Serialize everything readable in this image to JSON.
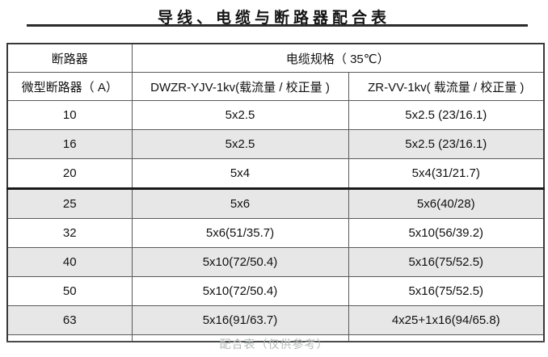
{
  "title": "导线、电缆与断路器配合表",
  "caption": "配合表（仅供参考）",
  "table": {
    "header": {
      "breaker": "断路器",
      "cable_spec": "电缆规格（ 35℃）",
      "breaker_detail": "微型断路器（ A）",
      "col_dwzr": "DWZR-YJV-1kv(载流量 / 校正量 )",
      "col_zrvv": "ZR-VV-1kv( 载流量 / 校正量 )"
    },
    "rows": [
      {
        "breaker": "10",
        "dwzr": "5x2.5",
        "zrvv": "5x2.5 (23/16.1)"
      },
      {
        "breaker": "16",
        "dwzr": "5x2.5",
        "zrvv": "5x2.5 (23/16.1)"
      },
      {
        "breaker": "20",
        "dwzr": "5x4",
        "zrvv": "5x4(31/21.7)"
      },
      {
        "breaker": "25",
        "dwzr": "5x6",
        "zrvv": "5x6(40/28)"
      },
      {
        "breaker": "32",
        "dwzr": "5x6(51/35.7)",
        "zrvv": "5x10(56/39.2)"
      },
      {
        "breaker": "40",
        "dwzr": "5x10(72/50.4)",
        "zrvv": "5x16(75/52.5)"
      },
      {
        "breaker": "50",
        "dwzr": "5x10(72/50.4)",
        "zrvv": "5x16(75/52.5)"
      },
      {
        "breaker": "63",
        "dwzr": "5x16(91/63.7)",
        "zrvv": "4x25+1x16(94/65.8)"
      }
    ]
  },
  "colors": {
    "row_shade": "#e7e7e7",
    "caption_gray": "#b2bbb5",
    "rule_dark": "#2b2b2b",
    "border_gray": "#5a5a5a"
  }
}
